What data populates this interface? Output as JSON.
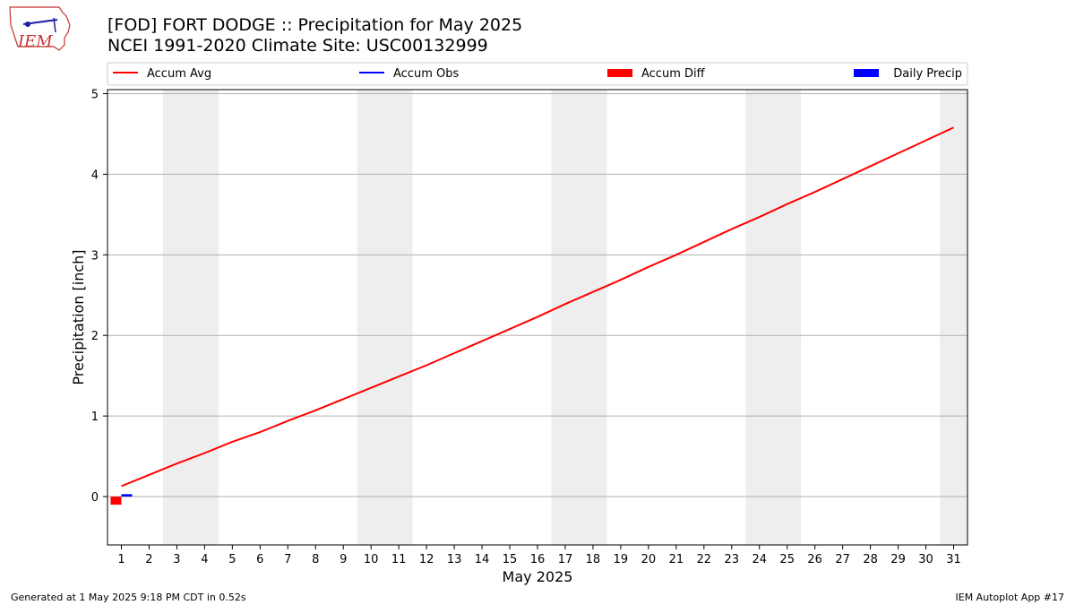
{
  "title_line1": "[FOD] FORT DODGE :: Precipitation for May 2025",
  "title_line2": "NCEI 1991-2020 Climate Site: USC00132999",
  "logo_text": "IEM",
  "footer_left": "Generated at 1 May 2025 9:18 PM CDT in 0.52s",
  "footer_right": "IEM Autoplot App #17",
  "chart_data": {
    "type": "line",
    "xlabel": "May 2025",
    "ylabel": "Precipitation [inch]",
    "xlim": [
      0.5,
      31.5
    ],
    "ylim": [
      -0.6,
      5.05
    ],
    "x_ticks": [
      1,
      2,
      3,
      4,
      5,
      6,
      7,
      8,
      9,
      10,
      11,
      12,
      13,
      14,
      15,
      16,
      17,
      18,
      19,
      20,
      21,
      22,
      23,
      24,
      25,
      26,
      27,
      28,
      29,
      30,
      31
    ],
    "y_ticks": [
      0,
      1,
      2,
      3,
      4,
      5
    ],
    "grid": "horizontal",
    "legend_position": "top",
    "weekend_shading": [
      [
        2.5,
        4.5
      ],
      [
        9.5,
        11.5
      ],
      [
        16.5,
        18.5
      ],
      [
        23.5,
        25.5
      ],
      [
        30.5,
        31.5
      ]
    ],
    "legend": [
      {
        "name": "Accum Avg",
        "kind": "line",
        "color": "#ff0000"
      },
      {
        "name": "Accum Obs",
        "kind": "line",
        "color": "#0000ff"
      },
      {
        "name": "Accum Diff",
        "kind": "bar",
        "color": "#ff0000"
      },
      {
        "name": "Daily Precip",
        "kind": "bar",
        "color": "#0000ff"
      }
    ],
    "series": [
      {
        "name": "Accum Avg",
        "type": "line",
        "color": "#ff0000",
        "x": [
          1,
          2,
          3,
          4,
          5,
          6,
          7,
          8,
          9,
          10,
          11,
          12,
          13,
          14,
          15,
          16,
          17,
          18,
          19,
          20,
          21,
          22,
          23,
          24,
          25,
          26,
          27,
          28,
          29,
          30,
          31
        ],
        "values": [
          0.13,
          0.27,
          0.41,
          0.54,
          0.68,
          0.8,
          0.94,
          1.07,
          1.21,
          1.35,
          1.49,
          1.63,
          1.78,
          1.93,
          2.08,
          2.23,
          2.39,
          2.54,
          2.69,
          2.85,
          3.0,
          3.16,
          3.32,
          3.47,
          3.63,
          3.78,
          3.94,
          4.1,
          4.26,
          4.42,
          4.58
        ]
      },
      {
        "name": "Accum Diff",
        "type": "bar",
        "color": "#ff0000",
        "x": [
          1
        ],
        "values": [
          -0.1
        ]
      },
      {
        "name": "Daily Precip",
        "type": "bar",
        "color": "#0000ff",
        "x": [
          1
        ],
        "values": [
          0.03
        ]
      }
    ]
  }
}
